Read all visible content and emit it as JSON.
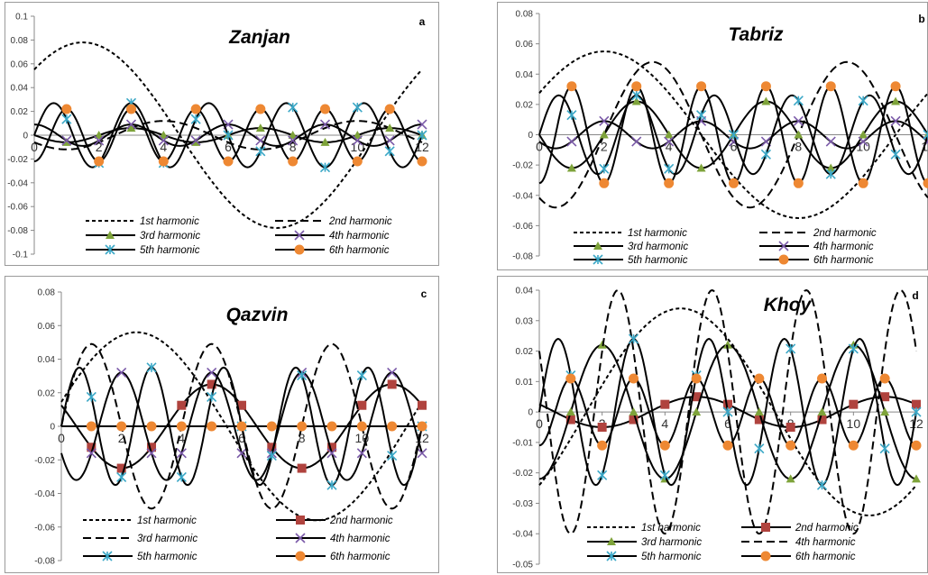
{
  "figure": {
    "panel_letters": [
      "a",
      "b",
      "c",
      "d"
    ]
  },
  "chart_data": [
    {
      "type": "line",
      "letter": "a",
      "title": "Zanjan",
      "x_ticks": [
        "0",
        "2",
        "4",
        "6",
        "8",
        "10",
        "12"
      ],
      "y_ticks": [
        "0.1",
        "0.08",
        "0.06",
        "0.04",
        "0.02",
        "0",
        "-0.02",
        "-0.04",
        "-0.06",
        "-0.08",
        "-0.1"
      ],
      "xlim": [
        0,
        12
      ],
      "ylim": [
        -0.1,
        0.1
      ],
      "legend_position": "bottom",
      "series": [
        {
          "name": "1st harmonic",
          "harmonic": 1,
          "amplitude": 0.078,
          "phase_month": 1.5,
          "marker": "none",
          "dash": "dotted"
        },
        {
          "name": "2nd harmonic",
          "harmonic": 2,
          "amplitude": 0.012,
          "phase_month": 4.0,
          "marker": "none",
          "dash": "dashed"
        },
        {
          "name": "3rd harmonic",
          "harmonic": 3,
          "amplitude": 0.006,
          "phase_month": 3.0,
          "marker": "triangle",
          "dash": "solid"
        },
        {
          "name": "4th harmonic",
          "harmonic": 4,
          "amplitude": 0.009,
          "phase_month": 0.0,
          "marker": "x",
          "dash": "solid"
        },
        {
          "name": "5th harmonic",
          "harmonic": 5,
          "amplitude": 0.027,
          "phase_month": 3.0,
          "marker": "star",
          "dash": "solid"
        },
        {
          "name": "6th harmonic",
          "harmonic": 6,
          "amplitude": 0.022,
          "phase_month": 1.0,
          "marker": "circle",
          "dash": "solid"
        }
      ]
    },
    {
      "type": "line",
      "letter": "b",
      "title": "Tabriz",
      "x_ticks": [
        "0",
        "2",
        "4",
        "6",
        "8",
        "10",
        "12"
      ],
      "y_ticks": [
        "0.08",
        "0.06",
        "0.04",
        "0.02",
        "0",
        "-0.02",
        "-0.04",
        "-0.06",
        "-0.08"
      ],
      "xlim": [
        0,
        12
      ],
      "ylim": [
        -0.08,
        0.08
      ],
      "legend_position": "bottom",
      "series": [
        {
          "name": "1st harmonic",
          "harmonic": 1,
          "amplitude": 0.055,
          "phase_month": 2.0,
          "marker": "none",
          "dash": "dotted"
        },
        {
          "name": "2nd harmonic",
          "harmonic": 2,
          "amplitude": 0.048,
          "phase_month": 3.5,
          "marker": "none",
          "dash": "dashed"
        },
        {
          "name": "3rd harmonic",
          "harmonic": 3,
          "amplitude": 0.022,
          "phase_month": 3.0,
          "marker": "triangle",
          "dash": "solid"
        },
        {
          "name": "4th harmonic",
          "harmonic": 4,
          "amplitude": 0.009,
          "phase_month": 2.0,
          "marker": "x",
          "dash": "solid"
        },
        {
          "name": "5th harmonic",
          "harmonic": 5,
          "amplitude": 0.026,
          "phase_month": 3.0,
          "marker": "star",
          "dash": "solid"
        },
        {
          "name": "6th harmonic",
          "harmonic": 6,
          "amplitude": 0.032,
          "phase_month": 1.0,
          "marker": "circle",
          "dash": "solid"
        }
      ]
    },
    {
      "type": "line",
      "letter": "c",
      "title": "Qazvin",
      "x_ticks": [
        "0",
        "2",
        "4",
        "6",
        "8",
        "10",
        "12"
      ],
      "y_ticks": [
        "0.08",
        "0.06",
        "0.04",
        "0.02",
        "0",
        "-0.02",
        "-0.04",
        "-0.06",
        "-0.08"
      ],
      "xlim": [
        0,
        12
      ],
      "ylim": [
        -0.08,
        0.08
      ],
      "legend_position": "bottom",
      "series": [
        {
          "name": "1st harmonic",
          "harmonic": 1,
          "amplitude": 0.056,
          "phase_month": 2.5,
          "marker": "none",
          "dash": "dotted"
        },
        {
          "name": "2nd harmonic",
          "harmonic": 2,
          "amplitude": 0.025,
          "phase_month": 5.0,
          "marker": "square",
          "dash": "solid"
        },
        {
          "name": "3rd harmonic",
          "harmonic": 3,
          "amplitude": 0.049,
          "phase_month": 1.0,
          "marker": "none",
          "dash": "dashed"
        },
        {
          "name": "4th harmonic",
          "harmonic": 4,
          "amplitude": 0.032,
          "phase_month": 2.0,
          "marker": "x",
          "dash": "solid"
        },
        {
          "name": "5th harmonic",
          "harmonic": 5,
          "amplitude": 0.035,
          "phase_month": 3.0,
          "marker": "star",
          "dash": "solid"
        },
        {
          "name": "6th harmonic",
          "harmonic": 6,
          "amplitude": 0.0,
          "phase_month": 1.0,
          "marker": "circle",
          "dash": "solid"
        }
      ]
    },
    {
      "type": "line",
      "letter": "d",
      "title": "Khoy",
      "x_ticks": [
        "0",
        "2",
        "4",
        "6",
        "8",
        "10",
        "12"
      ],
      "y_ticks": [
        "0.04",
        "0.03",
        "0.02",
        "0.01",
        "0",
        "-0.01",
        "-0.02",
        "-0.03",
        "-0.04",
        "-0.05"
      ],
      "xlim": [
        0,
        12
      ],
      "ylim": [
        -0.05,
        0.04
      ],
      "legend_position": "bottom",
      "series": [
        {
          "name": "1st harmonic",
          "harmonic": 1,
          "amplitude": 0.034,
          "phase_month": 4.5,
          "marker": "none",
          "dash": "dotted"
        },
        {
          "name": "2nd harmonic",
          "harmonic": 2,
          "amplitude": 0.005,
          "phase_month": 5.0,
          "marker": "square",
          "dash": "solid"
        },
        {
          "name": "3rd harmonic",
          "harmonic": 3,
          "amplitude": 0.022,
          "phase_month": 2.0,
          "marker": "triangle",
          "dash": "solid"
        },
        {
          "name": "4th harmonic",
          "harmonic": 4,
          "amplitude": 0.04,
          "phase_month": 2.5,
          "marker": "none",
          "dash": "dashed"
        },
        {
          "name": "5th harmonic",
          "harmonic": 5,
          "amplitude": 0.024,
          "phase_month": 3.0,
          "marker": "star",
          "dash": "solid"
        },
        {
          "name": "6th harmonic",
          "harmonic": 6,
          "amplitude": 0.011,
          "phase_month": 1.0,
          "marker": "circle",
          "dash": "solid"
        }
      ]
    }
  ]
}
